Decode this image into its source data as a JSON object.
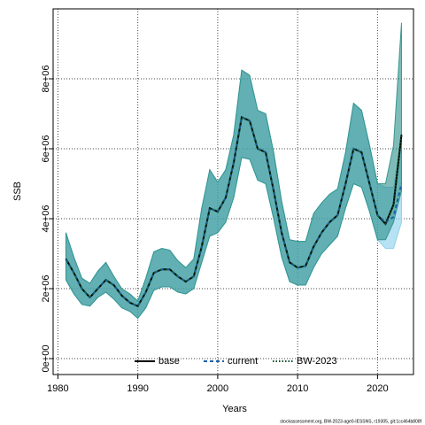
{
  "chart_data": {
    "type": "line",
    "xlabel": "Years",
    "ylabel": "SSB",
    "footnote": "stockassessment.org, BW-2023-age0-IESSNS, r19305, git:1cc464b808f",
    "x": [
      1981,
      1982,
      1983,
      1984,
      1985,
      1986,
      1987,
      1988,
      1989,
      1990,
      1991,
      1992,
      1993,
      1994,
      1995,
      1996,
      1997,
      1998,
      1999,
      2000,
      2001,
      2002,
      2003,
      2004,
      2005,
      2006,
      2007,
      2008,
      2009,
      2010,
      2011,
      2012,
      2013,
      2014,
      2015,
      2016,
      2017,
      2018,
      2019,
      2020,
      2021,
      2022,
      2023
    ],
    "xlim": [
      1979.4,
      2024.5
    ],
    "xticks": [
      1980,
      1990,
      2000,
      2010,
      2020
    ],
    "ylim": [
      -456000,
      10000000
    ],
    "yticks": [
      {
        "value": 0,
        "label": "0e+00"
      },
      {
        "value": 2000000,
        "label": "2e+06"
      },
      {
        "value": 4000000,
        "label": "4e+06"
      },
      {
        "value": 6000000,
        "label": "6e+06"
      },
      {
        "value": 8000000,
        "label": "8e+06"
      }
    ],
    "grid": true,
    "legend": "bottom",
    "series": [
      {
        "name": "base",
        "color": "#000000",
        "dash": "solid",
        "values": [
          2850000,
          2450000,
          2000000,
          1750000,
          2000000,
          2250000,
          2100000,
          1800000,
          1600000,
          1500000,
          1900000,
          2450000,
          2550000,
          2550000,
          2350000,
          2200000,
          2350000,
          3200000,
          4300000,
          4200000,
          4600000,
          5600000,
          6900000,
          6800000,
          6000000,
          5900000,
          4800000,
          3600000,
          2750000,
          2600000,
          2650000,
          3200000,
          3600000,
          3900000,
          4100000,
          5000000,
          6000000,
          5900000,
          5000000,
          4100000,
          3850000,
          4400000,
          6400000
        ]
      },
      {
        "name": "current",
        "color": "#1f5fa8",
        "dash": "dashed",
        "band_color": "#87ceeb",
        "values": [
          2850000,
          2450000,
          2000000,
          1750000,
          2000000,
          2250000,
          2100000,
          1800000,
          1600000,
          1500000,
          1900000,
          2450000,
          2550000,
          2550000,
          2350000,
          2200000,
          2350000,
          3200000,
          4300000,
          4200000,
          4600000,
          5600000,
          6900000,
          6800000,
          6000000,
          5900000,
          4800000,
          3600000,
          2750000,
          2600000,
          2650000,
          3200000,
          3600000,
          3900000,
          4100000,
          5000000,
          6000000,
          5900000,
          5000000,
          4100000,
          3900000,
          4050000,
          5000000
        ],
        "upper": [
          3600000,
          2900000,
          2300000,
          2150000,
          2500000,
          2750000,
          2350000,
          2000000,
          1850000,
          1650000,
          2300000,
          3050000,
          3150000,
          3100000,
          2800000,
          2600000,
          2850000,
          4300000,
          5400000,
          5050000,
          5400000,
          6400000,
          8250000,
          8100000,
          7100000,
          7000000,
          5900000,
          4500000,
          3400000,
          3350000,
          3350000,
          4150000,
          4450000,
          4700000,
          4850000,
          5900000,
          7300000,
          7100000,
          6100000,
          5000000,
          4900000,
          4900000,
          6300000
        ],
        "lower": [
          2250000,
          1850000,
          1550000,
          1500000,
          1750000,
          1900000,
          1700000,
          1450000,
          1350000,
          1150000,
          1450000,
          1950000,
          2050000,
          2050000,
          1900000,
          1850000,
          2000000,
          2750000,
          3500000,
          3600000,
          3900000,
          4600000,
          5750000,
          5700000,
          5100000,
          5000000,
          4000000,
          2900000,
          2200000,
          2100000,
          2100000,
          2600000,
          3000000,
          3250000,
          3500000,
          4300000,
          5000000,
          4900000,
          4200000,
          3400000,
          3150000,
          3150000,
          3900000
        ]
      },
      {
        "name": "BW-2023",
        "color": "#0b4d2c",
        "dash": "dotted",
        "band_color": "#2a9088",
        "values": [
          2850000,
          2450000,
          2000000,
          1750000,
          2000000,
          2250000,
          2100000,
          1800000,
          1600000,
          1500000,
          1900000,
          2450000,
          2550000,
          2550000,
          2350000,
          2200000,
          2350000,
          3200000,
          4300000,
          4200000,
          4600000,
          5600000,
          6900000,
          6800000,
          6000000,
          5900000,
          4800000,
          3600000,
          2750000,
          2600000,
          2650000,
          3200000,
          3600000,
          3900000,
          4100000,
          5000000,
          6000000,
          5900000,
          5000000,
          4100000,
          3850000,
          4400000,
          6400000
        ],
        "upper": [
          3600000,
          2900000,
          2300000,
          2150000,
          2500000,
          2750000,
          2350000,
          2000000,
          1850000,
          1650000,
          2300000,
          3050000,
          3150000,
          3100000,
          2800000,
          2600000,
          2850000,
          4300000,
          5400000,
          5050000,
          5400000,
          6400000,
          8250000,
          8100000,
          7100000,
          7000000,
          5900000,
          4500000,
          3400000,
          3350000,
          3350000,
          4150000,
          4450000,
          4700000,
          4850000,
          5900000,
          7300000,
          7100000,
          6100000,
          5000000,
          5000000,
          6100000,
          9600000
        ],
        "lower": [
          2250000,
          1850000,
          1550000,
          1500000,
          1750000,
          1900000,
          1700000,
          1450000,
          1350000,
          1150000,
          1450000,
          1950000,
          2050000,
          2050000,
          1900000,
          1850000,
          2000000,
          2750000,
          3500000,
          3600000,
          3900000,
          4600000,
          5750000,
          5700000,
          5100000,
          5000000,
          4000000,
          2900000,
          2200000,
          2100000,
          2100000,
          2600000,
          3000000,
          3250000,
          3500000,
          4300000,
          5000000,
          4900000,
          4200000,
          3400000,
          3400000,
          3900000,
          4800000
        ]
      }
    ]
  }
}
